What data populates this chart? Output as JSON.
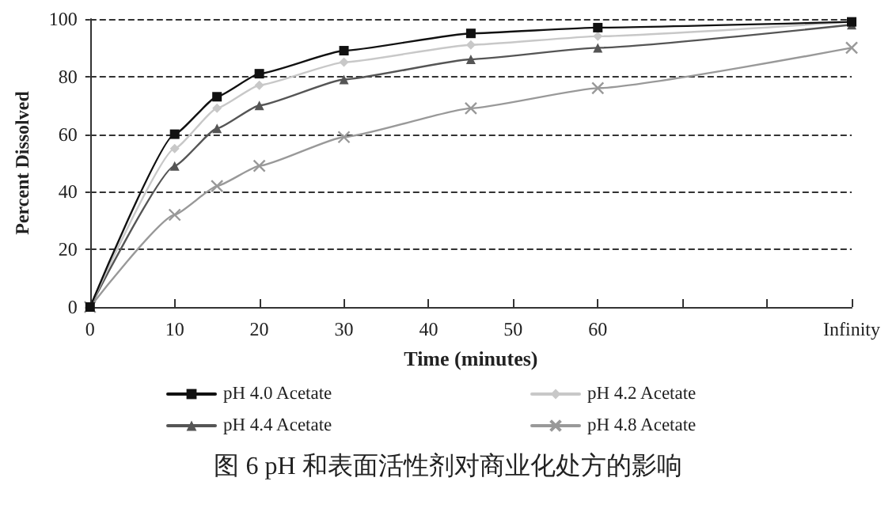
{
  "chart_data": {
    "type": "line",
    "xlabel": "Time (minutes)",
    "ylabel": "Percent Dissolved",
    "x": [
      0,
      10,
      15,
      20,
      30,
      45,
      60,
      90
    ],
    "series": [
      {
        "name": "pH 4.0 Acetate",
        "color": "#111111",
        "marker": "square",
        "values": [
          0,
          60,
          73,
          81,
          89,
          95,
          97,
          99
        ]
      },
      {
        "name": "pH 4.2 Acetate",
        "color": "#c8c8c8",
        "marker": "diamond",
        "values": [
          0,
          55,
          69,
          77,
          85,
          91,
          94,
          99
        ]
      },
      {
        "name": "pH 4.4 Acetate",
        "color": "#555555",
        "marker": "triangle",
        "values": [
          0,
          49,
          62,
          70,
          79,
          86,
          90,
          98
        ]
      },
      {
        "name": "pH 4.8 Acetate",
        "color": "#999999",
        "marker": "cross",
        "values": [
          0,
          32,
          42,
          49,
          59,
          69,
          76,
          90
        ]
      }
    ],
    "xlim": [
      0,
      90
    ],
    "xticks": [
      0,
      10,
      20,
      30,
      40,
      50,
      60,
      {
        "value": 70,
        "label": null
      },
      {
        "value": 80,
        "label": null
      },
      {
        "value": 90,
        "label": "Infinity"
      }
    ],
    "ylim": [
      0,
      100
    ],
    "yticks": [
      0,
      20,
      40,
      60,
      80,
      100
    ],
    "grid": "y",
    "legend": "bottom",
    "line_style": "solid",
    "annotations": [
      "图 6 pH 和表面活性剂对商业化处方的影响"
    ]
  }
}
